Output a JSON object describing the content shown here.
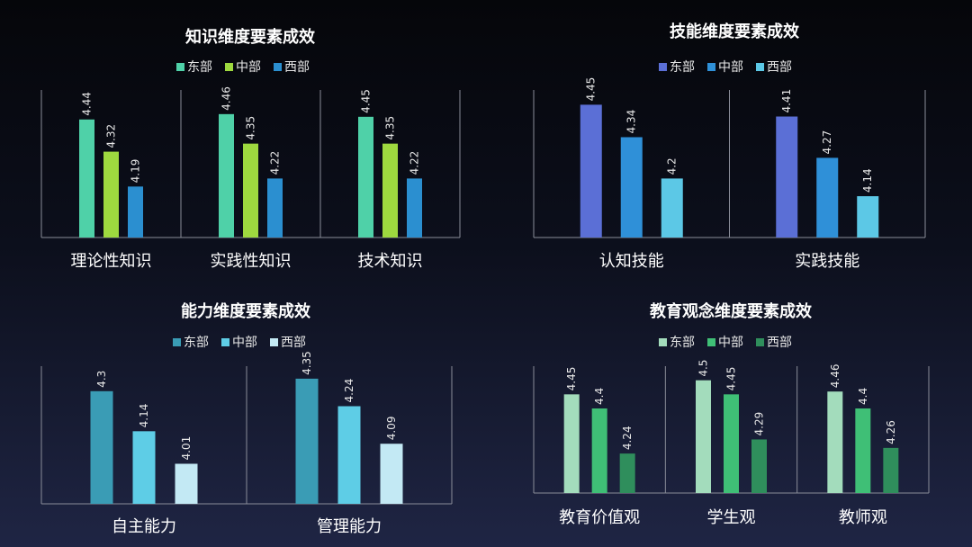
{
  "chart_data": [
    {
      "type": "bar",
      "title": "知识维度要素成效",
      "categories": [
        "理论性知识",
        "实践性知识",
        "技术知识"
      ],
      "series": [
        {
          "name": "东部",
          "color": "#4fd1a8",
          "values": [
            4.44,
            4.46,
            4.45
          ]
        },
        {
          "name": "中部",
          "color": "#9ed93f",
          "values": [
            4.32,
            4.35,
            4.35
          ]
        },
        {
          "name": "西部",
          "color": "#2b8fd0",
          "values": [
            4.19,
            4.22,
            4.22
          ]
        }
      ],
      "ylim": [
        4.0,
        4.55
      ],
      "legend": "top"
    },
    {
      "type": "bar",
      "title": "技能维度要素成效",
      "categories": [
        "认知技能",
        "实践技能"
      ],
      "series": [
        {
          "name": "东部",
          "color": "#5b6fd6",
          "values": [
            4.45,
            4.41
          ]
        },
        {
          "name": "中部",
          "color": "#2f90d8",
          "values": [
            4.34,
            4.27
          ]
        },
        {
          "name": "西部",
          "color": "#5cc8e6",
          "values": [
            4.2,
            4.14
          ]
        }
      ],
      "ylim": [
        4.0,
        4.5
      ],
      "legend": "top"
    },
    {
      "type": "bar",
      "title": "能力维度要素成效",
      "categories": [
        "自主能力",
        "管理能力"
      ],
      "series": [
        {
          "name": "东部",
          "color": "#3a9cb5",
          "values": [
            4.3,
            4.35
          ]
        },
        {
          "name": "中部",
          "color": "#5ecde6",
          "values": [
            4.14,
            4.24
          ]
        },
        {
          "name": "西部",
          "color": "#c3e9f4",
          "values": [
            4.01,
            4.09
          ]
        }
      ],
      "ylim": [
        3.85,
        4.4
      ],
      "legend": "top"
    },
    {
      "type": "bar",
      "title": "教育观念维度要素成效",
      "categories": [
        "教育价值观",
        "学生观",
        "教师观"
      ],
      "series": [
        {
          "name": "东部",
          "color": "#a3dcbc",
          "values": [
            4.45,
            4.5,
            4.46
          ]
        },
        {
          "name": "中部",
          "color": "#3fbf76",
          "values": [
            4.4,
            4.45,
            4.4
          ]
        },
        {
          "name": "西部",
          "color": "#2f8e5c",
          "values": [
            4.24,
            4.29,
            4.26
          ]
        }
      ],
      "ylim": [
        4.1,
        4.55
      ],
      "legend": "top"
    }
  ]
}
